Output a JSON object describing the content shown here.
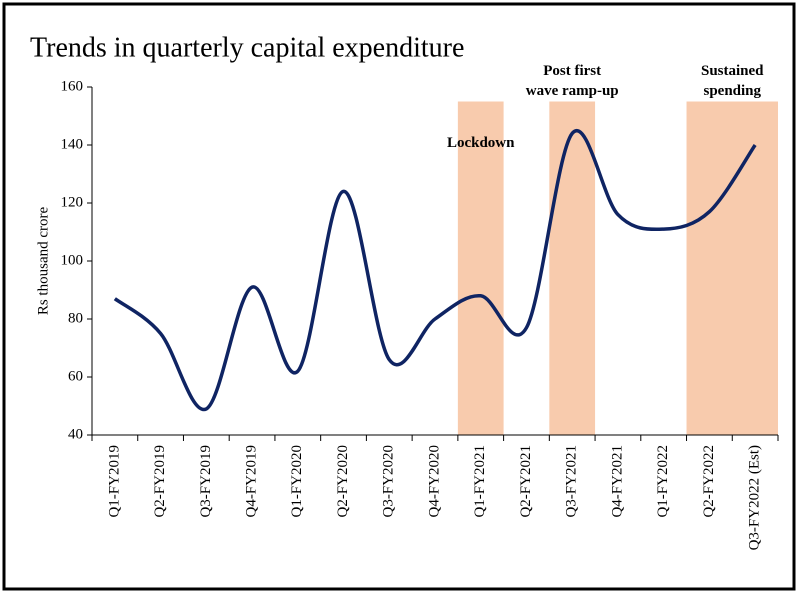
{
  "chart_data": {
    "type": "line",
    "title": "Trends in quarterly capital expenditure",
    "y_label": "Rs thousand crore",
    "categories": [
      "Q1-FY2019",
      "Q2-FY2019",
      "Q3-FY2019",
      "Q4-FY2019",
      "Q1-FY2020",
      "Q2-FY2020",
      "Q3-FY2020",
      "Q4-FY2020",
      "Q1-FY2021",
      "Q2-FY2021",
      "Q3-FY2021",
      "Q4-FY2021",
      "Q1-FY2022",
      "Q2-FY2022",
      "Q3-FY2022 (Est)"
    ],
    "values": [
      87,
      75,
      49,
      91,
      62,
      124,
      66,
      80,
      88,
      77,
      144,
      116,
      111,
      117,
      140
    ],
    "color": "#0f2463",
    "smooth": true,
    "ylim": [
      40,
      160
    ],
    "yticks": [
      40,
      60,
      80,
      100,
      120,
      140,
      160
    ],
    "shaded_regions": [
      {
        "label": [
          "Lockdown"
        ],
        "start": "Q1-FY2021",
        "end": "Q1-FY2021",
        "top": 155,
        "label_inside": true
      },
      {
        "label": [
          "Post first",
          "wave ramp-up"
        ],
        "start": "Q3-FY2021",
        "end": "Q3-FY2021",
        "top": 155,
        "label_inside": false
      },
      {
        "label": [
          "Sustained",
          "spending"
        ],
        "start": "Q2-FY2022",
        "end": "Q3-FY2022 (Est)",
        "top": 155,
        "label_inside": false
      }
    ],
    "shade_color": "#f8cbad"
  }
}
